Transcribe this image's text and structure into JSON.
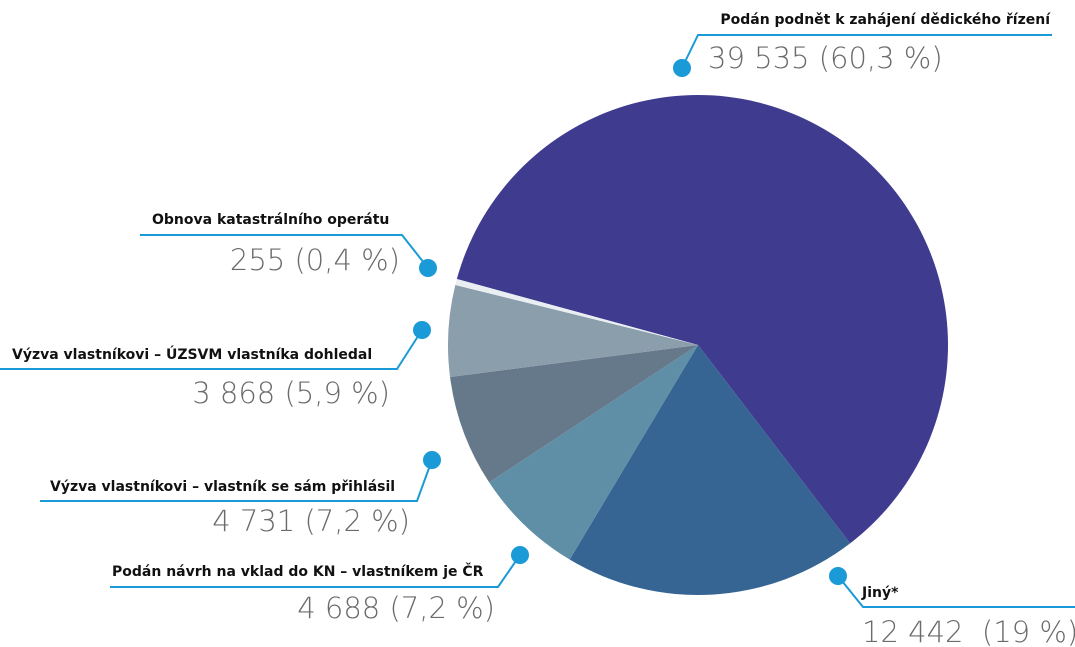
{
  "chart_data": {
    "type": "pie",
    "categories": [
      "Podán podnět k zahájení dědického řízení",
      "Jiný*",
      "Podán návrh na vklad do KN – vlastníkem je ČR",
      "Výzva vlastníkovi – vlastník se sám přihlásil",
      "Výzva vlastníkovi – ÚZSVM vlastníka dohledal",
      "Obnova katastrálního operátu"
    ],
    "values": [
      39535,
      12442,
      4688,
      4731,
      3868,
      255
    ],
    "value_labels": [
      "39 535 (60,3 %)",
      "12 442  (19 %)",
      "4 688 (7,2 %)",
      "4 731 (7,2 %)",
      "3 868 (5,9 %)",
      "255 (0,4 %)"
    ],
    "colors": [
      "#3f3b8f",
      "#366593",
      "#5f8fa6",
      "#66798a",
      "#8a9eac",
      "#e8eef2"
    ]
  }
}
